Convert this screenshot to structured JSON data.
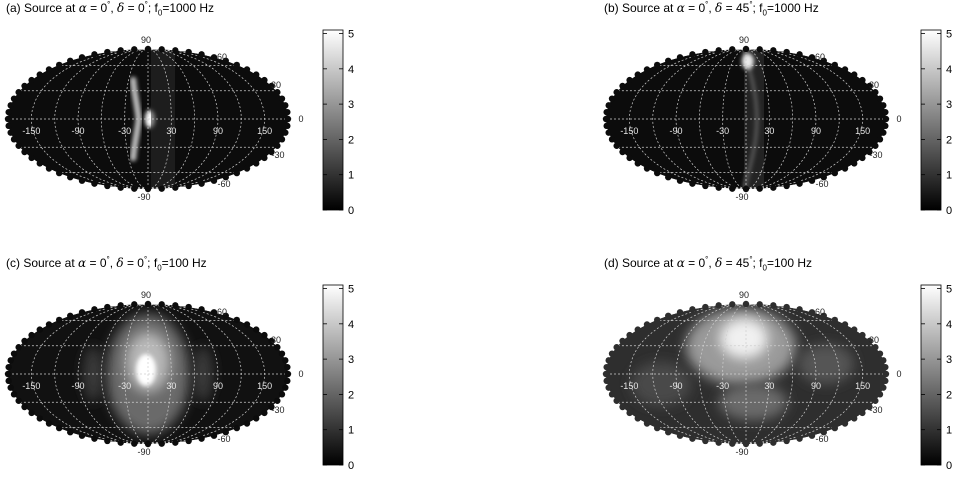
{
  "figure": {
    "colormap": "gray",
    "colorbar_ticks": [
      "0",
      "1",
      "2",
      "3",
      "4",
      "5"
    ],
    "lon_labels": [
      "-150",
      "-90",
      "-30",
      "30",
      "90",
      "150"
    ],
    "lat_labels": [
      "90",
      "60",
      "30",
      "0",
      "-30",
      "-60",
      "-90"
    ]
  },
  "chart_data": [
    {
      "type": "heatmap",
      "panel_label": "(a)",
      "title": "(a) Source at α = 0°, δ = 0°; f0=1000 Hz",
      "title_parts": {
        "pre": "(a) Source at ",
        "delta": "0",
        "freq": "1000"
      },
      "projection": "mollweide",
      "source_lon": 0,
      "source_lat": 0,
      "f0_hz": 1000,
      "xlim": [
        -180,
        180
      ],
      "ylim": [
        -90,
        90
      ],
      "color_range": [
        0,
        5.1
      ],
      "colorbar_ticks": [
        0,
        1,
        2,
        3,
        4,
        5
      ],
      "features": [
        {
          "kind": "arc",
          "lon": -30,
          "lat_range": [
            -45,
            45
          ],
          "peak_value": 5.0,
          "note": "bright narrow band near source"
        }
      ],
      "grid": true
    },
    {
      "type": "heatmap",
      "panel_label": "(b)",
      "title": "(b) Source at α = 0°, δ = 45°; f0=1000 Hz",
      "title_parts": {
        "pre": "(b) Source at ",
        "delta": "45",
        "freq": "1000"
      },
      "projection": "mollweide",
      "source_lon": 0,
      "source_lat": 45,
      "f0_hz": 1000,
      "xlim": [
        -180,
        180
      ],
      "ylim": [
        -90,
        90
      ],
      "color_range": [
        0,
        5.1
      ],
      "colorbar_ticks": [
        0,
        1,
        2,
        3,
        4,
        5
      ],
      "features": [
        {
          "kind": "arc",
          "lon": 0,
          "lat_range": [
            -90,
            90
          ],
          "peak_value": 4.0,
          "note": "thin curved ring passing near pole"
        }
      ],
      "grid": true
    },
    {
      "type": "heatmap",
      "panel_label": "(c)",
      "title": "(c) Source at α = 0°, δ = 0°; f0=100 Hz",
      "title_parts": {
        "pre": "(c) Source at ",
        "delta": "0",
        "freq": "100"
      },
      "projection": "mollweide",
      "source_lon": 0,
      "source_lat": 0,
      "f0_hz": 100,
      "xlim": [
        -180,
        180
      ],
      "ylim": [
        -90,
        90
      ],
      "color_range": [
        0,
        5.1
      ],
      "colorbar_ticks": [
        0,
        1,
        2,
        3,
        4,
        5
      ],
      "features": [
        {
          "kind": "blob",
          "lon": 0,
          "lat": 0,
          "peak_value": 5.0,
          "note": "broad bright region centred on source"
        }
      ],
      "grid": true
    },
    {
      "type": "heatmap",
      "panel_label": "(d)",
      "title": "(d) Source at α = 0°, δ = 45°; f0=100 Hz",
      "title_parts": {
        "pre": "(d) Source at ",
        "delta": "45",
        "freq": "100"
      },
      "projection": "mollweide",
      "source_lon": 0,
      "source_lat": 45,
      "f0_hz": 100,
      "xlim": [
        -180,
        180
      ],
      "ylim": [
        -90,
        90
      ],
      "color_range": [
        0,
        5.1
      ],
      "colorbar_ticks": [
        0,
        1,
        2,
        3,
        4,
        5
      ],
      "features": [
        {
          "kind": "blob",
          "lon": 0,
          "lat": 45,
          "peak_value": 5.0,
          "note": "broad bright region over northern hemisphere"
        }
      ],
      "grid": true
    }
  ]
}
